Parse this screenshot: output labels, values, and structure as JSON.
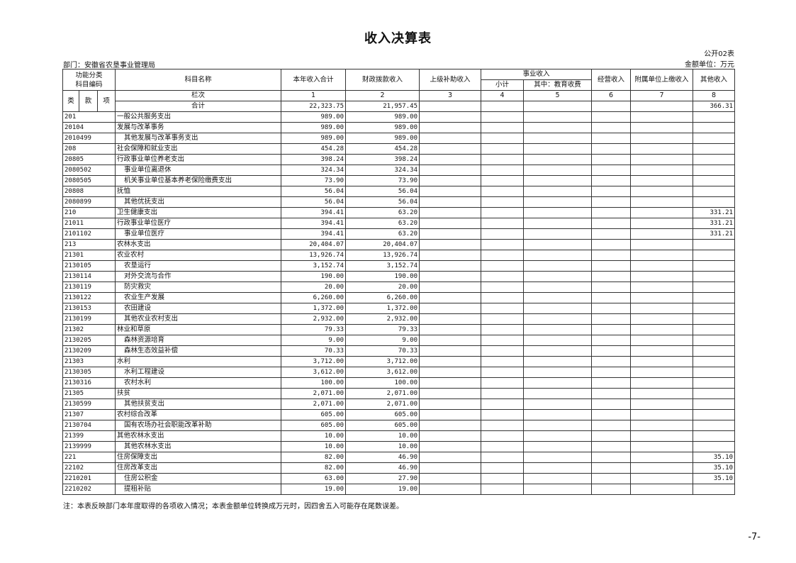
{
  "title": "收入决算表",
  "table_no": "公开02表",
  "unit": "金额单位：万元",
  "department": "部门：安徽省农垦事业管理局",
  "headers": {
    "func_code": "功能分类\n科目编码",
    "name": "科目名称",
    "c1": "本年收入合计",
    "c2": "财政拨款收入",
    "c3": "上级补助收入",
    "biz": "事业收入",
    "c4": "小计",
    "c5": "其中：教育收费",
    "c6": "经营收入",
    "c7": "附属单位上缴收入",
    "c8": "其他收入",
    "lei": "类",
    "kuan": "款",
    "xiang": "项",
    "lanci": "栏次",
    "nums": [
      "1",
      "2",
      "3",
      "4",
      "5",
      "6",
      "7",
      "8"
    ]
  },
  "total": {
    "label": "合计",
    "c1": "22,323.75",
    "c2": "21,957.45",
    "c8": "366.31"
  },
  "rows": [
    {
      "code": "201",
      "name": "一般公共服务支出",
      "indent": false,
      "c1": "989.00",
      "c2": "989.00",
      "c8": ""
    },
    {
      "code": "20104",
      "name": "发展与改革事务",
      "indent": false,
      "c1": "989.00",
      "c2": "989.00",
      "c8": ""
    },
    {
      "code": "2010499",
      "name": "其他发展与改革事务支出",
      "indent": true,
      "c1": "989.00",
      "c2": "989.00",
      "c8": ""
    },
    {
      "code": "208",
      "name": "社会保障和就业支出",
      "indent": false,
      "c1": "454.28",
      "c2": "454.28",
      "c8": ""
    },
    {
      "code": "20805",
      "name": "行政事业单位养老支出",
      "indent": false,
      "c1": "398.24",
      "c2": "398.24",
      "c8": ""
    },
    {
      "code": "2080502",
      "name": "事业单位离退休",
      "indent": true,
      "c1": "324.34",
      "c2": "324.34",
      "c8": ""
    },
    {
      "code": "2080505",
      "name": "机关事业单位基本养老保险缴费支出",
      "indent": true,
      "c1": "73.90",
      "c2": "73.90",
      "c8": ""
    },
    {
      "code": "20808",
      "name": "抚恤",
      "indent": false,
      "c1": "56.04",
      "c2": "56.04",
      "c8": ""
    },
    {
      "code": "2080899",
      "name": "其他优抚支出",
      "indent": true,
      "c1": "56.04",
      "c2": "56.04",
      "c8": ""
    },
    {
      "code": "210",
      "name": "卫生健康支出",
      "indent": false,
      "c1": "394.41",
      "c2": "63.20",
      "c8": "331.21"
    },
    {
      "code": "21011",
      "name": "行政事业单位医疗",
      "indent": false,
      "c1": "394.41",
      "c2": "63.20",
      "c8": "331.21"
    },
    {
      "code": "2101102",
      "name": "事业单位医疗",
      "indent": true,
      "c1": "394.41",
      "c2": "63.20",
      "c8": "331.21"
    },
    {
      "code": "213",
      "name": "农林水支出",
      "indent": false,
      "c1": "20,404.07",
      "c2": "20,404.07",
      "c8": ""
    },
    {
      "code": "21301",
      "name": "农业农村",
      "indent": false,
      "c1": "13,926.74",
      "c2": "13,926.74",
      "c8": ""
    },
    {
      "code": "2130105",
      "name": "农垦运行",
      "indent": true,
      "c1": "3,152.74",
      "c2": "3,152.74",
      "c8": ""
    },
    {
      "code": "2130114",
      "name": "对外交流与合作",
      "indent": true,
      "c1": "190.00",
      "c2": "190.00",
      "c8": ""
    },
    {
      "code": "2130119",
      "name": "防灾救灾",
      "indent": true,
      "c1": "20.00",
      "c2": "20.00",
      "c8": ""
    },
    {
      "code": "2130122",
      "name": "农业生产发展",
      "indent": true,
      "c1": "6,260.00",
      "c2": "6,260.00",
      "c8": ""
    },
    {
      "code": "2130153",
      "name": "农田建设",
      "indent": true,
      "c1": "1,372.00",
      "c2": "1,372.00",
      "c8": ""
    },
    {
      "code": "2130199",
      "name": "其他农业农村支出",
      "indent": true,
      "c1": "2,932.00",
      "c2": "2,932.00",
      "c8": ""
    },
    {
      "code": "21302",
      "name": "林业和草原",
      "indent": false,
      "c1": "79.33",
      "c2": "79.33",
      "c8": ""
    },
    {
      "code": "2130205",
      "name": "森林资源培育",
      "indent": true,
      "c1": "9.00",
      "c2": "9.00",
      "c8": ""
    },
    {
      "code": "2130209",
      "name": "森林生态效益补偿",
      "indent": true,
      "c1": "70.33",
      "c2": "70.33",
      "c8": ""
    },
    {
      "code": "21303",
      "name": "水利",
      "indent": false,
      "c1": "3,712.00",
      "c2": "3,712.00",
      "c8": ""
    },
    {
      "code": "2130305",
      "name": "水利工程建设",
      "indent": true,
      "c1": "3,612.00",
      "c2": "3,612.00",
      "c8": ""
    },
    {
      "code": "2130316",
      "name": "农村水利",
      "indent": true,
      "c1": "100.00",
      "c2": "100.00",
      "c8": ""
    },
    {
      "code": "21305",
      "name": "扶贫",
      "indent": false,
      "c1": "2,071.00",
      "c2": "2,071.00",
      "c8": ""
    },
    {
      "code": "2130599",
      "name": "其他扶贫支出",
      "indent": true,
      "c1": "2,071.00",
      "c2": "2,071.00",
      "c8": ""
    },
    {
      "code": "21307",
      "name": "农村综合改革",
      "indent": false,
      "c1": "605.00",
      "c2": "605.00",
      "c8": ""
    },
    {
      "code": "2130704",
      "name": "国有农场办社会职能改革补助",
      "indent": true,
      "c1": "605.00",
      "c2": "605.00",
      "c8": ""
    },
    {
      "code": "21399",
      "name": "其他农林水支出",
      "indent": false,
      "c1": "10.00",
      "c2": "10.00",
      "c8": ""
    },
    {
      "code": "2139999",
      "name": "其他农林水支出",
      "indent": true,
      "c1": "10.00",
      "c2": "10.00",
      "c8": ""
    },
    {
      "code": "221",
      "name": "住房保障支出",
      "indent": false,
      "c1": "82.00",
      "c2": "46.90",
      "c8": "35.10"
    },
    {
      "code": "22102",
      "name": "住房改革支出",
      "indent": false,
      "c1": "82.00",
      "c2": "46.90",
      "c8": "35.10"
    },
    {
      "code": "2210201",
      "name": "住房公积金",
      "indent": true,
      "c1": "63.00",
      "c2": "27.90",
      "c8": "35.10"
    },
    {
      "code": "2210202",
      "name": "提租补贴",
      "indent": true,
      "c1": "19.00",
      "c2": "19.00",
      "c8": ""
    }
  ],
  "note": "注：本表反映部门本年度取得的各项收入情况；本表金额单位转换成万元时，因四舍五入可能存在尾数误差。",
  "page_number": "-7-"
}
